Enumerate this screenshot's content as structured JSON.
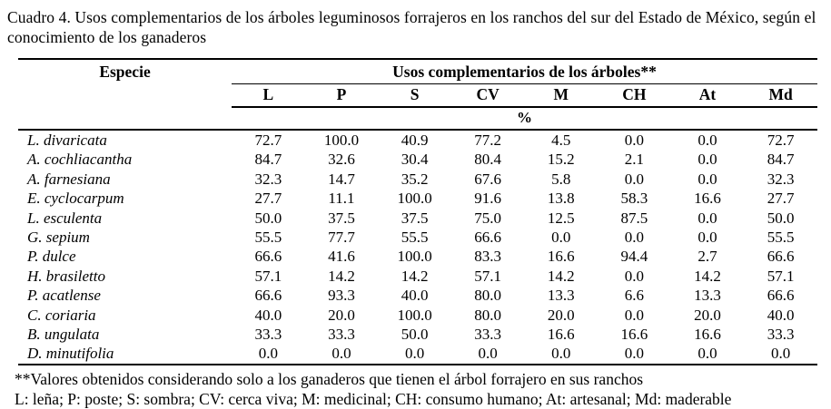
{
  "title": "Cuadro 4. Usos complementarios de los árboles leguminosos forrajeros en los ranchos del sur del Estado de México, según el conocimiento de los ganaderos",
  "table": {
    "species_header": "Especie",
    "group_header": "Usos complementarios de los árboles**",
    "columns": [
      "L",
      "P",
      "S",
      "CV",
      "M",
      "CH",
      "At",
      "Md"
    ],
    "unit_label": "%",
    "rows": [
      {
        "species": "L. divaricata",
        "values": [
          "72.7",
          "100.0",
          "40.9",
          "77.2",
          "4.5",
          "0.0",
          "0.0",
          "72.7"
        ]
      },
      {
        "species": "A. cochliacantha",
        "values": [
          "84.7",
          "32.6",
          "30.4",
          "80.4",
          "15.2",
          "2.1",
          "0.0",
          "84.7"
        ]
      },
      {
        "species": "A. farnesiana",
        "values": [
          "32.3",
          "14.7",
          "35.2",
          "67.6",
          "5.8",
          "0.0",
          "0.0",
          "32.3"
        ]
      },
      {
        "species": "E. cyclocarpum",
        "values": [
          "27.7",
          "11.1",
          "100.0",
          "91.6",
          "13.8",
          "58.3",
          "16.6",
          "27.7"
        ]
      },
      {
        "species": "L. esculenta",
        "values": [
          "50.0",
          "37.5",
          "37.5",
          "75.0",
          "12.5",
          "87.5",
          "0.0",
          "50.0"
        ]
      },
      {
        "species": "G. sepium",
        "values": [
          "55.5",
          "77.7",
          "55.5",
          "66.6",
          "0.0",
          "0.0",
          "0.0",
          "55.5"
        ]
      },
      {
        "species": "P. dulce",
        "values": [
          "66.6",
          "41.6",
          "100.0",
          "83.3",
          "16.6",
          "94.4",
          "2.7",
          "66.6"
        ]
      },
      {
        "species": "H. brasiletto",
        "values": [
          "57.1",
          "14.2",
          "14.2",
          "57.1",
          "14.2",
          "0.0",
          "14.2",
          "57.1"
        ]
      },
      {
        "species": "P. acatlense",
        "values": [
          "66.6",
          "93.3",
          "40.0",
          "80.0",
          "13.3",
          "6.6",
          "13.3",
          "66.6"
        ]
      },
      {
        "species": "C. coriaria",
        "values": [
          "40.0",
          "20.0",
          "100.0",
          "80.0",
          "20.0",
          "0.0",
          "20.0",
          "40.0"
        ]
      },
      {
        "species": "B. ungulata",
        "values": [
          "33.3",
          "33.3",
          "50.0",
          "33.3",
          "16.6",
          "16.6",
          "16.6",
          "33.3"
        ]
      },
      {
        "species": "D. minutifolia",
        "values": [
          "0.0",
          "0.0",
          "0.0",
          "0.0",
          "0.0",
          "0.0",
          "0.0",
          "0.0"
        ]
      }
    ]
  },
  "footnotes": [
    "**Valores obtenidos considerando solo a los ganaderos que tienen el árbol forrajero en sus ranchos",
    "L: leña; P: poste; S: sombra; CV: cerca viva; M: medicinal; CH: consumo humano; At: artesanal; Md: maderable"
  ]
}
